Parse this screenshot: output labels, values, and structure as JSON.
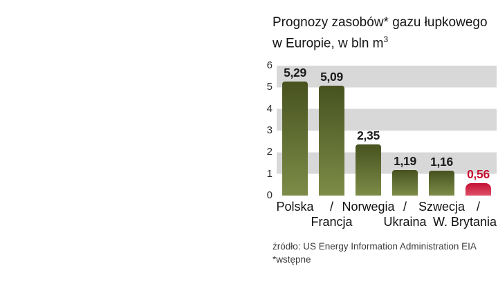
{
  "title": {
    "line1": "Prognozy zasobów* gazu łupkowego",
    "line2": "w Europie, w bln m",
    "line2_sup": "3"
  },
  "chart_data": {
    "type": "bar",
    "categories": [
      "Polska",
      "Francja",
      "Norwegia",
      "Ukraina",
      "Szwecja",
      "W. Brytania"
    ],
    "values": [
      5.29,
      5.09,
      2.35,
      1.19,
      1.16,
      0.56
    ],
    "value_labels": [
      "5,29",
      "5,09",
      "2,35",
      "1,19",
      "1,16",
      "0,56"
    ],
    "title": "Prognozy zasobów* gazu łupkowego w Europie, w bln m3",
    "xlabel": "",
    "ylabel": "",
    "ylim": [
      0,
      6
    ],
    "yticks": [
      "6",
      "5",
      "4",
      "3",
      "2",
      "1",
      "0"
    ],
    "grid": "striped-bands",
    "legend": "none",
    "highlight_index": 5,
    "separator": "/",
    "stripe_color": "#d8d8d8",
    "bar_color_top": "#47521f",
    "bar_color_bottom": "#7d8c48",
    "highlight_color_top": "#c51236",
    "highlight_color_bottom": "#dd4f66",
    "label_color": "#1b1b1b",
    "highlight_label_color": "#c50f33"
  },
  "source": {
    "line1": "źródło: US Energy Information Administration EIA",
    "line2": "*wstępne"
  }
}
